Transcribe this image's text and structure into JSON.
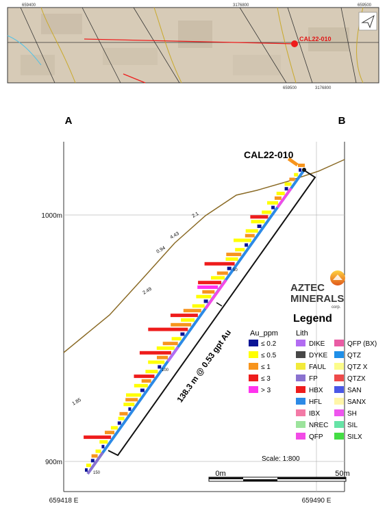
{
  "inset_map": {
    "top_coords": [
      "659400",
      "3176800",
      "659500"
    ],
    "bottom_coords": [
      "659500",
      "3176800"
    ],
    "hole_label": "CAL22-010"
  },
  "section": {
    "left_end": "A",
    "right_end": "B",
    "hole_label": "CAL22-010",
    "elevation_labels": [
      "1000m",
      "900m"
    ],
    "easting_labels": [
      "659418 E",
      "659490 E"
    ],
    "depth_labels": [
      "50",
      "100",
      "150"
    ],
    "assay_labels": [
      "2.1",
      "4.43",
      "0.94",
      "2.49",
      "1.85"
    ],
    "intercept": "138.3 m @ 0.53 gpt Au",
    "scale_text": "Scale: 1:800",
    "scalebar_start": "0m",
    "scalebar_end": "50m"
  },
  "logo": {
    "line1": "AZTEC",
    "line2": "MINERALS",
    "line3": "corp."
  },
  "legend": {
    "title": "Legend",
    "au_title": "Au_ppm",
    "au_items": [
      {
        "label": "≤ 0.2",
        "color": "#0a1496"
      },
      {
        "label": "≤ 0.5",
        "color": "#ffff00"
      },
      {
        "label": "≤ 1",
        "color": "#f7941d"
      },
      {
        "label": "≤ 3",
        "color": "#ee1c1c"
      },
      {
        "label": "> 3",
        "color": "#ff33ee"
      }
    ],
    "lith_title": "Lith",
    "lith_col1": [
      {
        "label": "DIKE",
        "color": "#b26cf2"
      },
      {
        "label": "DYKE",
        "color": "#474747"
      },
      {
        "label": "FAUL",
        "color": "#f2ea3a"
      },
      {
        "label": "FP",
        "color": "#8a72cf"
      },
      {
        "label": "HBX",
        "color": "#ee1c1c"
      },
      {
        "label": "HFL",
        "color": "#2c8ae6"
      },
      {
        "label": "IBX",
        "color": "#f37aa6"
      },
      {
        "label": "NREC",
        "color": "#9ce39c"
      },
      {
        "label": "QFP",
        "color": "#f24be6"
      }
    ],
    "lith_col2": [
      {
        "label": "QFP (BX)",
        "color": "#e95ca4"
      },
      {
        "label": "QTZ",
        "color": "#1f8fe8"
      },
      {
        "label": "QTZ X",
        "color": "#fcfc8a"
      },
      {
        "label": "QTZX",
        "color": "#ee4a4a"
      },
      {
        "label": "SAN",
        "color": "#4a57e6"
      },
      {
        "label": "SANX",
        "color": "#fff5a8"
      },
      {
        "label": "SH",
        "color": "#ee55ee"
      },
      {
        "label": "SIL",
        "color": "#66e3a6"
      },
      {
        "label": "SILX",
        "color": "#44dd44"
      }
    ]
  }
}
